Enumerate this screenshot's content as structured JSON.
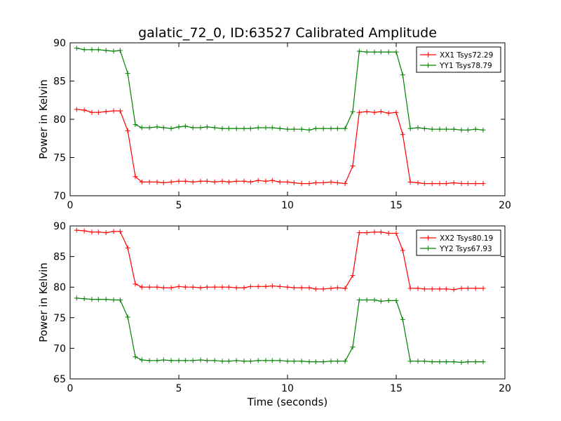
{
  "figure": {
    "title": "galatic_72_0, ID:63527 Calibrated Amplitude",
    "xlabel": "Time (seconds)"
  },
  "chart_data": [
    {
      "type": "line",
      "title": "galatic_72_0, ID:63527 Calibrated Amplitude",
      "xlabel": "",
      "ylabel": "Power in Kelvin",
      "xlim": [
        0,
        20
      ],
      "ylim": [
        70,
        90
      ],
      "xticks": [
        0,
        5,
        10,
        15,
        20
      ],
      "yticks": [
        70,
        75,
        80,
        85,
        90
      ],
      "grid": false,
      "legend_position": "top-right",
      "x": [
        0.3,
        0.65,
        1.0,
        1.3,
        1.65,
        2.0,
        2.3,
        2.65,
        3.0,
        3.3,
        3.65,
        4.0,
        4.3,
        4.65,
        5.0,
        5.3,
        5.65,
        6.0,
        6.3,
        6.65,
        7.0,
        7.3,
        7.65,
        8.0,
        8.3,
        8.65,
        9.0,
        9.3,
        9.65,
        10.0,
        10.3,
        10.65,
        11.0,
        11.3,
        11.65,
        12.0,
        12.3,
        12.65,
        13.0,
        13.3,
        13.65,
        14.0,
        14.3,
        14.65,
        15.0,
        15.3,
        15.65,
        16.0,
        16.3,
        16.65,
        17.0,
        17.3,
        17.65,
        18.0,
        18.3,
        18.65,
        19.0
      ],
      "series": [
        {
          "name": "XX1 Tsys72.29",
          "color": "#ff0000",
          "values": [
            81.3,
            81.2,
            80.9,
            80.9,
            81.0,
            81.1,
            81.1,
            78.5,
            72.5,
            71.8,
            71.8,
            71.8,
            71.7,
            71.8,
            71.9,
            71.9,
            71.8,
            71.9,
            71.9,
            71.8,
            71.9,
            71.8,
            71.9,
            71.9,
            71.8,
            72.0,
            71.9,
            72.0,
            71.8,
            71.8,
            71.7,
            71.6,
            71.6,
            71.7,
            71.7,
            71.8,
            71.7,
            71.6,
            73.9,
            80.9,
            81.0,
            80.9,
            81.0,
            80.8,
            80.9,
            78.0,
            71.8,
            71.7,
            71.6,
            71.6,
            71.6,
            71.6,
            71.7,
            71.6,
            71.6,
            71.6,
            71.6
          ]
        },
        {
          "name": "YY1 Tsys78.79",
          "color": "#008000",
          "values": [
            89.3,
            89.1,
            89.1,
            89.1,
            89.0,
            88.9,
            89.0,
            86.0,
            79.3,
            78.9,
            78.9,
            79.0,
            78.9,
            78.8,
            79.0,
            79.1,
            78.9,
            78.9,
            79.0,
            78.9,
            78.8,
            78.8,
            78.8,
            78.8,
            78.8,
            78.9,
            78.9,
            78.9,
            78.8,
            78.7,
            78.7,
            78.7,
            78.6,
            78.8,
            78.8,
            78.8,
            78.8,
            78.8,
            81.0,
            88.9,
            88.8,
            88.8,
            88.8,
            88.8,
            88.8,
            85.8,
            78.8,
            78.9,
            78.8,
            78.7,
            78.7,
            78.7,
            78.7,
            78.6,
            78.6,
            78.7,
            78.6
          ]
        }
      ]
    },
    {
      "type": "line",
      "title": "",
      "xlabel": "Time (seconds)",
      "ylabel": "Power in Kelvin",
      "xlim": [
        0,
        20
      ],
      "ylim": [
        65,
        90
      ],
      "xticks": [
        0,
        5,
        10,
        15,
        20
      ],
      "yticks": [
        65,
        70,
        75,
        80,
        85,
        90
      ],
      "grid": false,
      "legend_position": "top-right",
      "x": [
        0.3,
        0.65,
        1.0,
        1.3,
        1.65,
        2.0,
        2.3,
        2.65,
        3.0,
        3.3,
        3.65,
        4.0,
        4.3,
        4.65,
        5.0,
        5.3,
        5.65,
        6.0,
        6.3,
        6.65,
        7.0,
        7.3,
        7.65,
        8.0,
        8.3,
        8.65,
        9.0,
        9.3,
        9.65,
        10.0,
        10.3,
        10.65,
        11.0,
        11.3,
        11.65,
        12.0,
        12.3,
        12.65,
        13.0,
        13.3,
        13.65,
        14.0,
        14.3,
        14.65,
        15.0,
        15.3,
        15.65,
        16.0,
        16.3,
        16.65,
        17.0,
        17.3,
        17.65,
        18.0,
        18.3,
        18.65,
        19.0
      ],
      "series": [
        {
          "name": "XX2 Tsys80.19",
          "color": "#ff0000",
          "values": [
            89.3,
            89.2,
            89.0,
            89.0,
            88.9,
            89.1,
            89.1,
            86.4,
            80.5,
            80.0,
            80.0,
            80.0,
            79.9,
            79.9,
            80.1,
            80.0,
            80.0,
            79.9,
            80.0,
            80.0,
            80.0,
            80.0,
            79.9,
            79.9,
            80.1,
            80.1,
            80.1,
            80.2,
            80.1,
            80.0,
            79.9,
            79.9,
            79.9,
            79.7,
            79.7,
            79.8,
            79.9,
            79.8,
            81.9,
            88.9,
            88.9,
            89.0,
            89.0,
            88.8,
            88.8,
            86.0,
            79.8,
            79.8,
            79.7,
            79.7,
            79.7,
            79.7,
            79.6,
            79.8,
            79.8,
            79.8,
            79.8
          ]
        },
        {
          "name": "YY2 Tsys67.93",
          "color": "#008000",
          "values": [
            78.2,
            78.1,
            78.0,
            78.0,
            78.0,
            77.9,
            77.9,
            75.1,
            68.6,
            68.1,
            68.0,
            68.0,
            68.1,
            68.0,
            68.0,
            68.0,
            68.0,
            68.1,
            68.0,
            68.0,
            67.9,
            67.9,
            68.0,
            67.9,
            67.9,
            68.0,
            68.0,
            68.0,
            68.0,
            67.9,
            67.9,
            67.9,
            67.8,
            67.8,
            67.8,
            67.9,
            67.9,
            67.9,
            70.2,
            77.9,
            77.9,
            77.9,
            77.7,
            77.8,
            77.8,
            74.7,
            67.9,
            67.9,
            67.9,
            67.8,
            67.8,
            67.8,
            67.8,
            67.7,
            67.8,
            67.8,
            67.8
          ]
        }
      ]
    }
  ]
}
